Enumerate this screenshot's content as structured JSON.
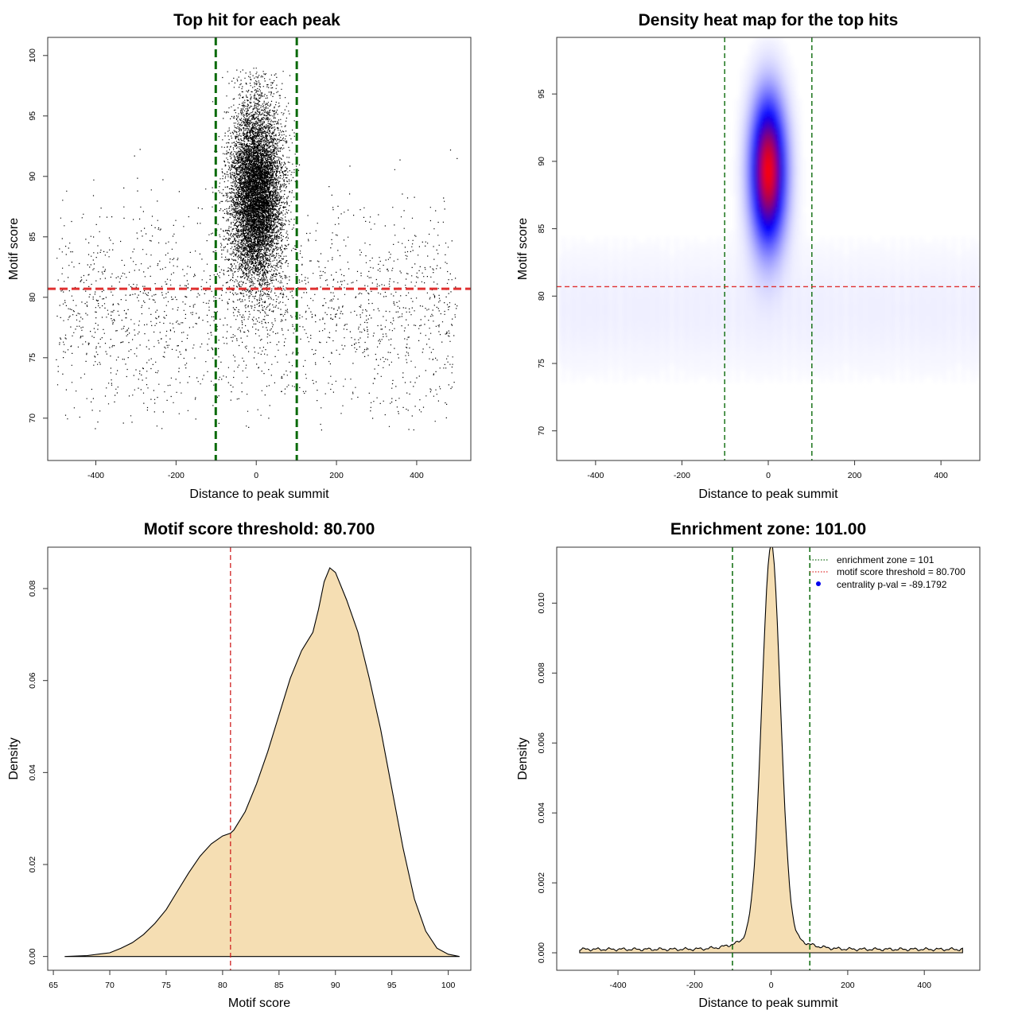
{
  "chart_data": [
    {
      "type": "scatter",
      "title": "Top hit for each peak",
      "xlabel": "Distance to peak summit",
      "ylabel": "Motif score",
      "xlim": [
        -520,
        535
      ],
      "ylim": [
        66.5,
        101.5
      ],
      "xticks": [
        -400,
        -200,
        0,
        200,
        400
      ],
      "yticks": [
        70,
        75,
        80,
        85,
        90,
        95,
        100
      ],
      "vlines": [
        -101,
        101
      ],
      "hline": 80.7,
      "point_model": {
        "central_n": 9000,
        "central_x_sd": 32,
        "central_y_mean": 88.6,
        "central_y_sd": 3.7,
        "central_y_min": 75,
        "central_y_max": 99,
        "background_n": 1900,
        "background_x_range": [
          -500,
          500
        ],
        "background_y_mean": 79,
        "background_y_sd": 4.2,
        "background_y_min": 69,
        "background_y_max": 98
      }
    },
    {
      "type": "heatmap",
      "title": "Density heat map for the top hits",
      "xlabel": "Distance to peak summit",
      "ylabel": "Motif score",
      "xlim": [
        -490,
        490
      ],
      "ylim": [
        67.8,
        99.2
      ],
      "xticks": [
        -400,
        -200,
        0,
        200,
        400
      ],
      "yticks": [
        70,
        75,
        80,
        85,
        90,
        95
      ],
      "vlines": [
        -101,
        101
      ],
      "hline": 80.7,
      "peak": {
        "x": 0,
        "y": 89.3,
        "x_sd": 27,
        "y_sd": 3.6
      }
    },
    {
      "type": "area",
      "title": "Motif score threshold: 80.700",
      "xlabel": "Motif score",
      "ylabel": "Density",
      "xlim": [
        64.5,
        102
      ],
      "ylim": [
        -0.003,
        0.089
      ],
      "xticks": [
        65,
        70,
        75,
        80,
        85,
        90,
        95,
        100
      ],
      "yticks": [
        0.0,
        0.02,
        0.04,
        0.06,
        0.08
      ],
      "ytick_labels": [
        "0.00",
        "0.02",
        "0.04",
        "0.06",
        "0.08"
      ],
      "vline": 80.7,
      "x": [
        66,
        68,
        70,
        71,
        72,
        73,
        74,
        75,
        76,
        77,
        78,
        79,
        80,
        80.7,
        81,
        82,
        83,
        84,
        85,
        86,
        87,
        88,
        88.5,
        89,
        89.5,
        90,
        91,
        92,
        93,
        94,
        95,
        96,
        97,
        98,
        99,
        100,
        101
      ],
      "y": [
        0.0,
        0.0002,
        0.0008,
        0.0018,
        0.003,
        0.0048,
        0.0072,
        0.0102,
        0.0142,
        0.0182,
        0.0218,
        0.0245,
        0.0262,
        0.0268,
        0.0275,
        0.0315,
        0.0375,
        0.0445,
        0.0525,
        0.0605,
        0.0665,
        0.0705,
        0.0755,
        0.0815,
        0.0845,
        0.0835,
        0.0775,
        0.0705,
        0.0605,
        0.0495,
        0.0365,
        0.0235,
        0.0125,
        0.0055,
        0.0018,
        0.0005,
        0.0
      ]
    },
    {
      "type": "area",
      "title": "Enrichment zone: 101.00",
      "xlabel": "Distance to peak summit",
      "ylabel": "Density",
      "xlim": [
        -560,
        545
      ],
      "ylim": [
        -0.0005,
        0.0116
      ],
      "xticks": [
        -400,
        -200,
        0,
        200,
        400
      ],
      "yticks": [
        0.0,
        0.002,
        0.004,
        0.006,
        0.008,
        0.01
      ],
      "ytick_labels": [
        "0.000",
        "0.002",
        "0.004",
        "0.006",
        "0.008",
        "0.010"
      ],
      "vlines": [
        -101,
        101
      ],
      "peak": {
        "x": 0,
        "height": 0.0112,
        "sd": 24
      },
      "baseline_density": 0.0001,
      "x_range": [
        -500,
        500
      ],
      "legend": {
        "position": "top-right",
        "entries": [
          {
            "label": "enrichment zone = 101",
            "color": "#1b6e1b",
            "style": "dotted-line"
          },
          {
            "label": "motif score threshold = 80.700",
            "color": "#e03030",
            "style": "dotted-line"
          },
          {
            "label": "centrality p-val = -89.1792",
            "color": "#0000ee",
            "style": "point"
          }
        ]
      }
    }
  ],
  "colors": {
    "points": "#000000",
    "vline": "#0a6a0a",
    "hline": "#e03030",
    "fill": "#f5deb3",
    "heat_low": "#ffffff",
    "heat_mid": "#0000ff",
    "heat_high": "#ff0000"
  }
}
